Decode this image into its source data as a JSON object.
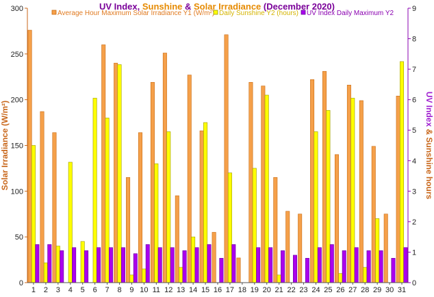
{
  "chart_data": {
    "type": "bar",
    "title": {
      "parts": [
        {
          "text": "UV Index",
          "color": "#7a0099"
        },
        {
          "text": ", ",
          "color": "#7a0099"
        },
        {
          "text": "Sunshine",
          "color": "#e68a00"
        },
        {
          "text": " & ",
          "color": "#7a0099"
        },
        {
          "text": "Solar Irradiance",
          "color": "#e68a00"
        },
        {
          "text": " (December 2020)",
          "color": "#7a0099"
        }
      ]
    },
    "categories": [
      "1",
      "2",
      "3",
      "4",
      "5",
      "6",
      "7",
      "8",
      "9",
      "10",
      "11",
      "12",
      "13",
      "14",
      "15",
      "16",
      "17",
      "18",
      "19",
      "20",
      "21",
      "22",
      "23",
      "24",
      "25",
      "26",
      "27",
      "28",
      "29",
      "30",
      "31"
    ],
    "series": [
      {
        "name": "Average Hour Maximum Solar Irradiance Y1 (W/m²)",
        "axis": "left",
        "color": "#f5a04a",
        "stroke": "#c86a10",
        "values": [
          276,
          187,
          164,
          0,
          0,
          0,
          260,
          240,
          115,
          164,
          219,
          251,
          95,
          227,
          166,
          55,
          271,
          27,
          219,
          215,
          115,
          78,
          75,
          222,
          231,
          140,
          216,
          199,
          149,
          75,
          204
        ]
      },
      {
        "name": "Daily Sunshine Y2 (hours)",
        "axis": "right",
        "color": "#ffff00",
        "stroke": "#999900",
        "values": [
          4.5,
          0.65,
          1.2,
          3.95,
          1.35,
          6.05,
          5.4,
          7.15,
          0.25,
          0.45,
          3.9,
          4.95,
          0.5,
          1.5,
          5.25,
          0,
          3.6,
          0,
          3.75,
          6.15,
          0.25,
          0,
          0,
          4.95,
          5.65,
          0.3,
          6.05,
          0.5,
          2.1,
          0,
          7.25
        ]
      },
      {
        "name": "UV Index Daily Maximum Y2",
        "axis": "right",
        "color": "#aa00ee",
        "stroke": "#660099",
        "values": [
          1.25,
          1.25,
          1.05,
          1.15,
          1.05,
          1.15,
          1.15,
          1.15,
          0.95,
          1.25,
          1.15,
          1.15,
          1.05,
          1.15,
          1.25,
          0.8,
          1.25,
          0,
          1.15,
          1.15,
          1.05,
          0.9,
          0.8,
          1.15,
          1.25,
          1.05,
          1.15,
          1.05,
          1.05,
          0.8,
          1.15
        ]
      }
    ],
    "yleft": {
      "label": "Solar Irradiance (W/m²)",
      "color": "#c8661a",
      "min": 0,
      "max": 300,
      "ticks": [
        0,
        50,
        100,
        150,
        200,
        250,
        300
      ]
    },
    "yright": {
      "label_parts": [
        {
          "text": "UV Index",
          "color": "#a020d0"
        },
        {
          "text": " & ",
          "color": "#c8661a"
        },
        {
          "text": "Sunshine hours",
          "color": "#c8661a"
        }
      ],
      "min": 0,
      "max": 9,
      "ticks": [
        0,
        1,
        2,
        3,
        4,
        5,
        6,
        7,
        8,
        9
      ]
    },
    "left_tick_color": "#c8661a",
    "right_tick_color": "#8a00b0",
    "grid": false,
    "legend_position": "top"
  }
}
